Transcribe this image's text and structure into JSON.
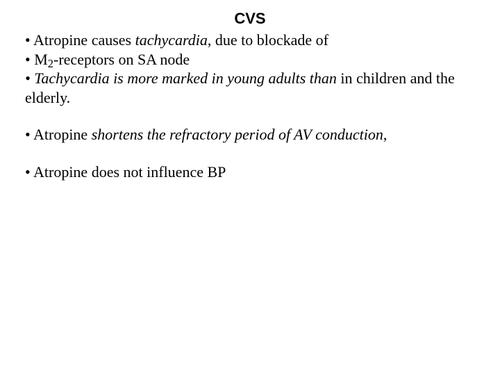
{
  "typography": {
    "title_font_family": "Arial",
    "title_font_weight": "bold",
    "title_font_size_pt": 16,
    "body_font_family": "Times New Roman",
    "body_font_size_pt": 16,
    "text_color": "#000000",
    "background_color": "#ffffff"
  },
  "title": "CVS",
  "bullets": {
    "b1_pre": "• Atropine causes ",
    "b1_em": "tachycardia",
    "b1_post": ", due to blockade of",
    "b2_pre": "• M",
    "b2_sub": "2",
    "b2_post": "-receptors on SA node",
    "b3_em": "• Tachycardia is more marked in young adults than ",
    "b3_post": "in children and the elderly.",
    "b4_pre": "• Atropine ",
    "b4_em": "shortens the refractory period of AV conduction",
    "b4_post": ",",
    "b5": "• Atropine does not influence BP"
  }
}
